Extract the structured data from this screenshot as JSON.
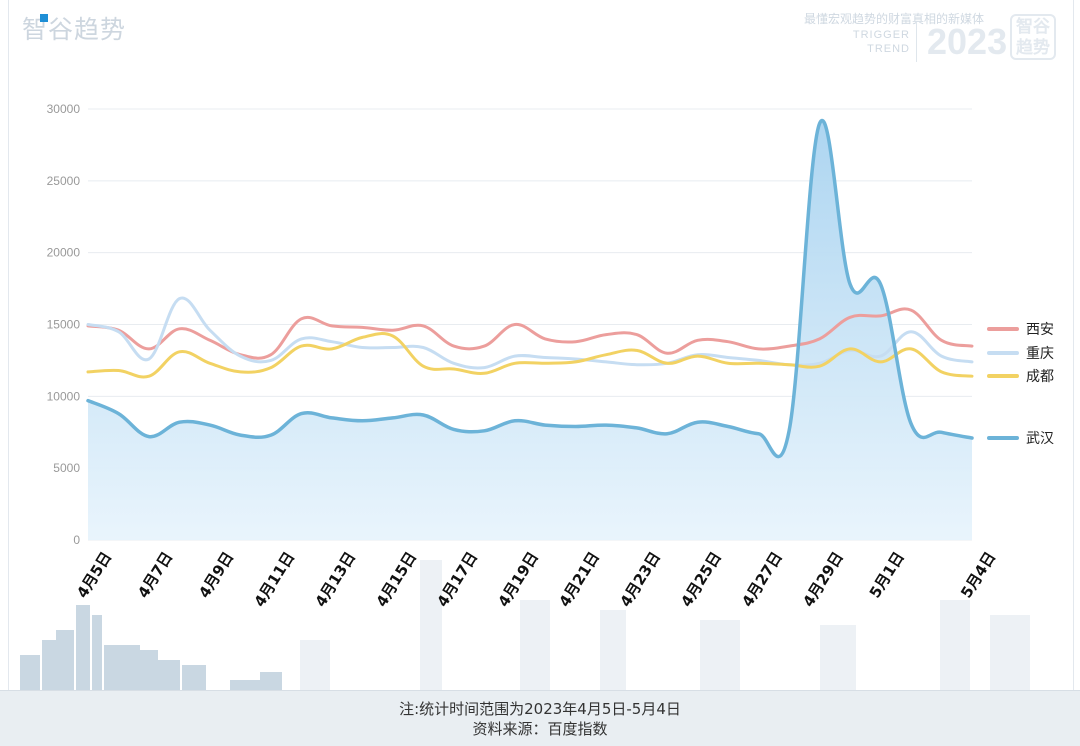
{
  "header": {
    "brand": "智谷趋势",
    "slogan": "最懂宏观趋势的财富真相的新媒体",
    "trigger_line1": "TRIGGER",
    "trigger_line2": "TREND",
    "year": "2023",
    "logo_text": "智谷趋势"
  },
  "footer": {
    "note": "注:统计时间范围为2023年4月5日-5月4日",
    "source": "资料来源：百度指数"
  },
  "colors": {
    "xian": "#ec9e9c",
    "chongqing": "#c6ddf2",
    "chengdu": "#f2d263",
    "wuhan": "#6cb3d8",
    "wuhan_fill_top": "#a9d3f0",
    "wuhan_fill_bottom": "#e8f4fc",
    "grid": "#e8ecf0",
    "tick_text": "#999999"
  },
  "chart_data": {
    "type": "line",
    "ylim": [
      0,
      30000
    ],
    "yticks": [
      0,
      5000,
      10000,
      15000,
      20000,
      25000,
      30000
    ],
    "x_tick_labels": [
      "4月5日",
      "4月7日",
      "4月9日",
      "4月11日",
      "4月13日",
      "4月15日",
      "4月17日",
      "4月19日",
      "4月21日",
      "4月23日",
      "4月25日",
      "4月27日",
      "4月29日",
      "5月1日",
      "5月4日"
    ],
    "x_tick_days": [
      0,
      2,
      4,
      6,
      8,
      10,
      12,
      14,
      16,
      18,
      20,
      22,
      24,
      26,
      29
    ],
    "days": [
      0,
      1,
      2,
      3,
      4,
      5,
      6,
      7,
      8,
      9,
      10,
      11,
      12,
      13,
      14,
      15,
      16,
      17,
      18,
      19,
      20,
      21,
      22,
      23,
      24,
      25,
      26,
      27,
      28,
      29
    ],
    "series": [
      {
        "name": "西安",
        "key": "xian",
        "values": [
          14900,
          14600,
          13300,
          14700,
          13900,
          12900,
          12900,
          15400,
          14900,
          14800,
          14600,
          14900,
          13500,
          13500,
          15000,
          14000,
          13800,
          14300,
          14300,
          13000,
          13900,
          13800,
          13300,
          13500,
          14000,
          15500,
          15600,
          16000,
          13900,
          13500
        ]
      },
      {
        "name": "重庆",
        "key": "chongqing",
        "values": [
          15000,
          14500,
          12600,
          16800,
          14600,
          12800,
          12500,
          14000,
          13800,
          13400,
          13400,
          13400,
          12300,
          12000,
          12800,
          12700,
          12600,
          12400,
          12200,
          12300,
          12900,
          12700,
          12500,
          12200,
          12300,
          13200,
          12800,
          14500,
          12800,
          12400
        ]
      },
      {
        "name": "成都",
        "key": "chengdu",
        "values": [
          11700,
          11800,
          11400,
          13100,
          12300,
          11700,
          12000,
          13500,
          13300,
          14100,
          14200,
          12100,
          11900,
          11600,
          12300,
          12300,
          12400,
          12900,
          13200,
          12300,
          12800,
          12300,
          12300,
          12200,
          12100,
          13300,
          12400,
          13300,
          11700,
          11400
        ]
      },
      {
        "name": "武汉",
        "key": "wuhan",
        "values": [
          9700,
          8800,
          7200,
          8200,
          8000,
          7300,
          7300,
          8800,
          8500,
          8300,
          8500,
          8700,
          7700,
          7600,
          8300,
          8000,
          7900,
          8000,
          7800,
          7400,
          8200,
          7900,
          7400,
          7600,
          29000,
          17800,
          17800,
          8100,
          7500,
          7100
        ]
      }
    ]
  }
}
